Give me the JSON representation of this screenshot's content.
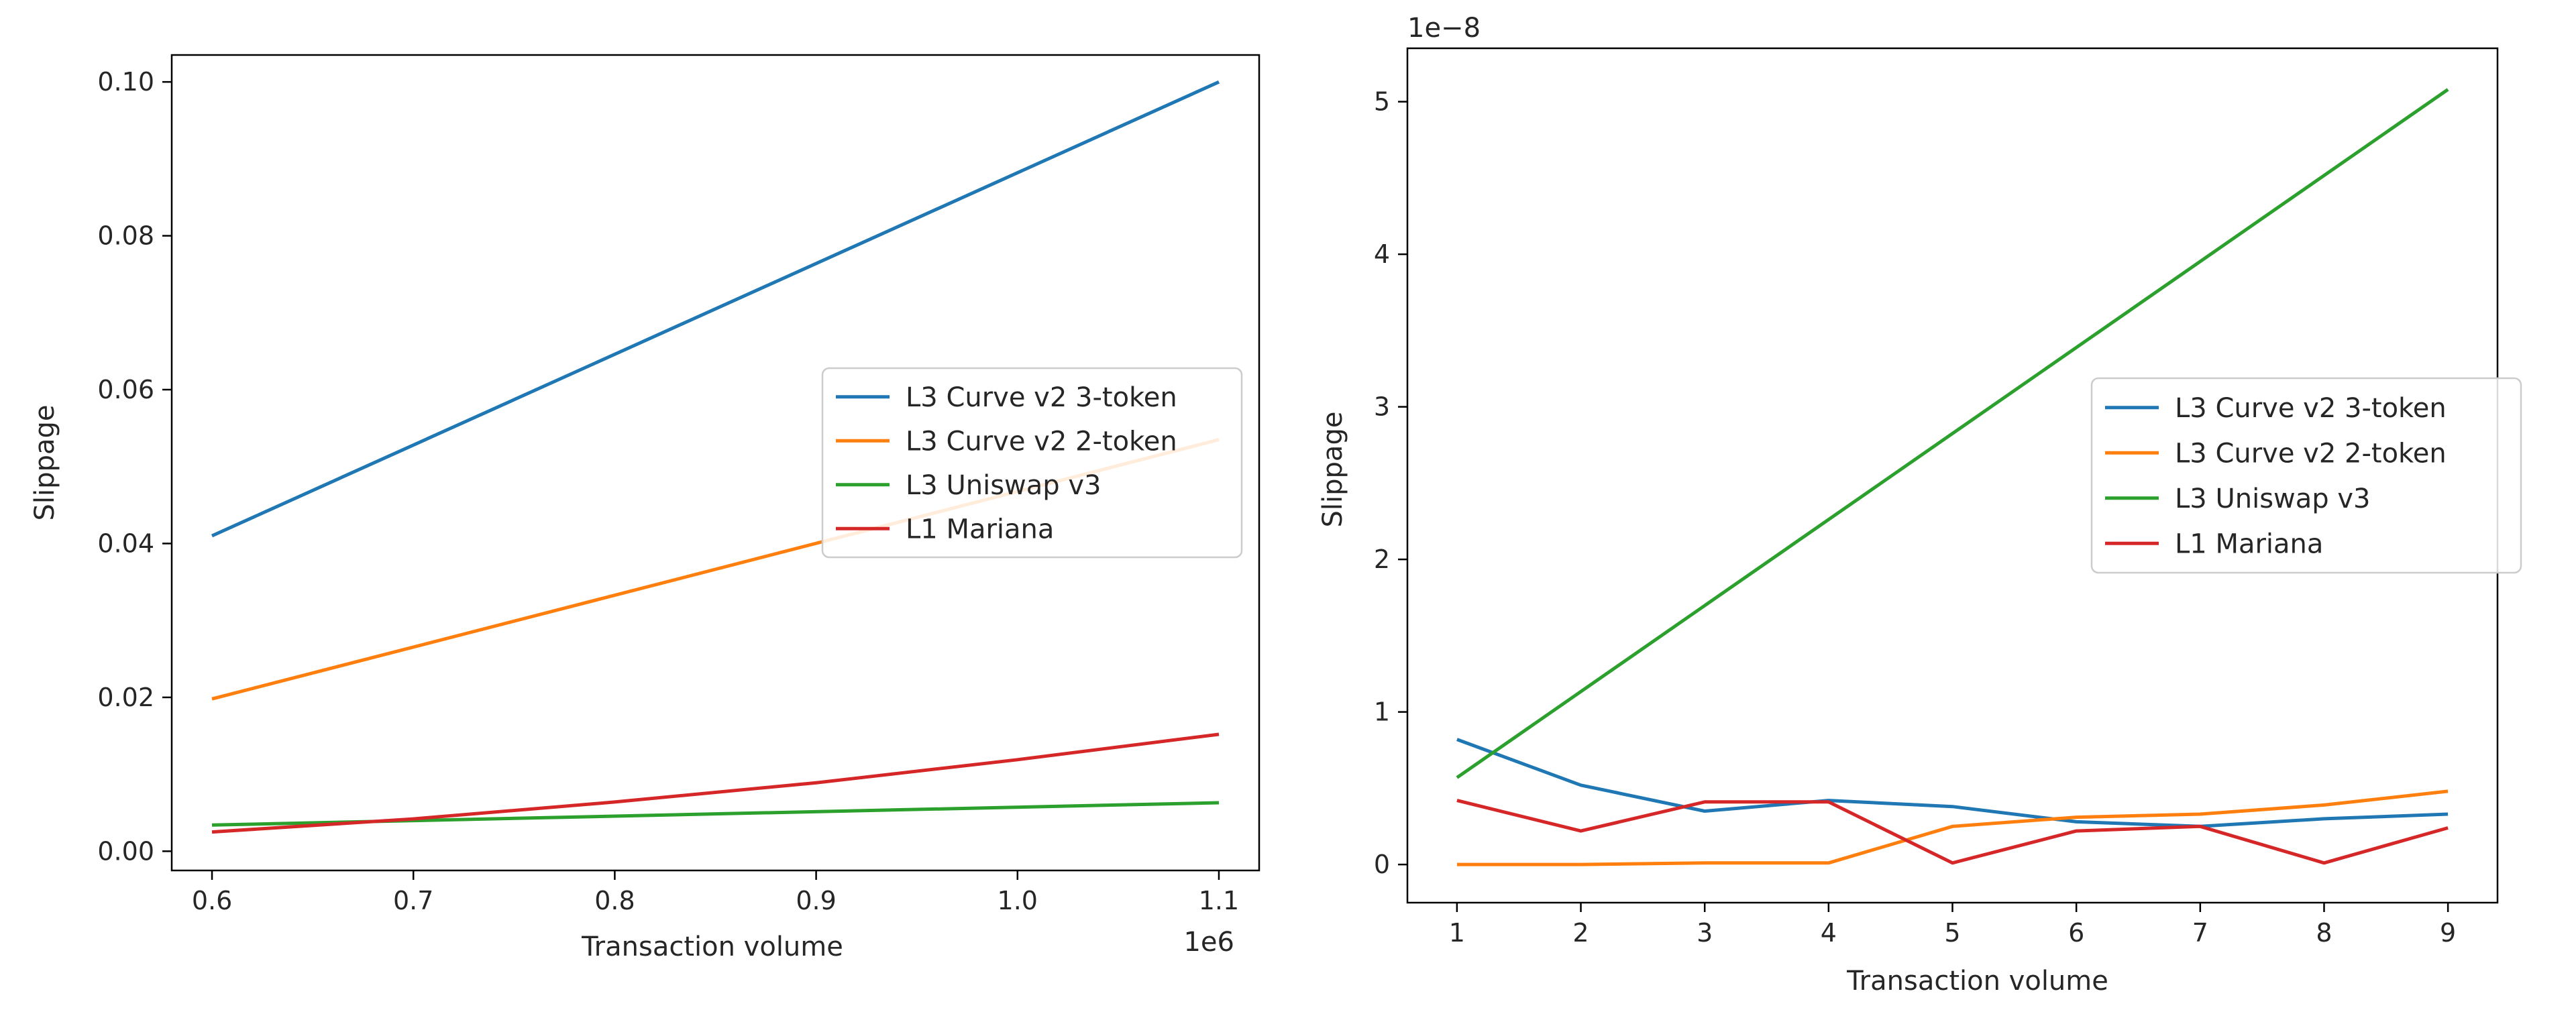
{
  "chart_data": [
    {
      "type": "line",
      "xlabel": "Transaction volume",
      "ylabel": "Slippage",
      "x_offset_label": "1e6",
      "xlim": [
        0.58,
        1.12
      ],
      "ylim": [
        -0.0025,
        0.1035
      ],
      "xticks": [
        0.6,
        0.7,
        0.8,
        0.9,
        1.0,
        1.1
      ],
      "xtick_labels": [
        "0.6",
        "0.7",
        "0.8",
        "0.9",
        "1.0",
        "1.1"
      ],
      "yticks": [
        0.0,
        0.02,
        0.04,
        0.06,
        0.08,
        0.1
      ],
      "ytick_labels": [
        "0.00",
        "0.02",
        "0.04",
        "0.06",
        "0.08",
        "0.10"
      ],
      "legend_position": "center-right",
      "series": [
        {
          "name": "L3 Curve v2 3-token",
          "color": "#1f77b4",
          "x": [
            0.6,
            1.1
          ],
          "values": [
            0.041,
            0.1
          ]
        },
        {
          "name": "L3 Curve v2 2-token",
          "color": "#ff7f0e",
          "x": [
            0.6,
            1.1
          ],
          "values": [
            0.0198,
            0.0535
          ]
        },
        {
          "name": "L3 Uniswap v3",
          "color": "#2ca02c",
          "x": [
            0.6,
            1.1
          ],
          "values": [
            0.0034,
            0.0063
          ]
        },
        {
          "name": "L1 Mariana",
          "color": "#d62728",
          "x": [
            0.6,
            0.7,
            0.8,
            0.9,
            1.0,
            1.1
          ],
          "values": [
            0.0025,
            0.0042,
            0.0064,
            0.0089,
            0.0119,
            0.0152
          ]
        }
      ]
    },
    {
      "type": "line",
      "xlabel": "Transaction volume",
      "ylabel": "Slippage",
      "y_offset_label": "1e−8",
      "xlim": [
        0.6,
        9.4
      ],
      "ylim": [
        -0.25,
        5.35
      ],
      "xticks": [
        1,
        2,
        3,
        4,
        5,
        6,
        7,
        8,
        9
      ],
      "xtick_labels": [
        "1",
        "2",
        "3",
        "4",
        "5",
        "6",
        "7",
        "8",
        "9"
      ],
      "yticks": [
        0,
        1,
        2,
        3,
        4,
        5
      ],
      "ytick_labels": [
        "0",
        "1",
        "2",
        "3",
        "4",
        "5"
      ],
      "legend_position": "center-right",
      "series": [
        {
          "name": "L3 Curve v2 3-token",
          "color": "#1f77b4",
          "x": [
            1,
            2,
            3,
            4,
            5,
            6,
            7,
            8,
            9
          ],
          "values": [
            0.82,
            0.52,
            0.35,
            0.42,
            0.38,
            0.28,
            0.25,
            0.3,
            0.33
          ]
        },
        {
          "name": "L3 Curve v2 2-token",
          "color": "#ff7f0e",
          "x": [
            1,
            2,
            3,
            4,
            5,
            6,
            7,
            8,
            9
          ],
          "values": [
            0.0,
            0.0,
            0.01,
            0.01,
            0.25,
            0.31,
            0.33,
            0.39,
            0.48
          ]
        },
        {
          "name": "L3 Uniswap v3",
          "color": "#2ca02c",
          "x": [
            1,
            9
          ],
          "values": [
            0.57,
            5.08
          ]
        },
        {
          "name": "L1 Mariana",
          "color": "#d62728",
          "x": [
            1,
            2,
            3,
            4,
            5,
            6,
            7,
            8,
            9
          ],
          "values": [
            0.42,
            0.22,
            0.41,
            0.41,
            0.01,
            0.22,
            0.25,
            0.01,
            0.24
          ]
        }
      ]
    }
  ]
}
